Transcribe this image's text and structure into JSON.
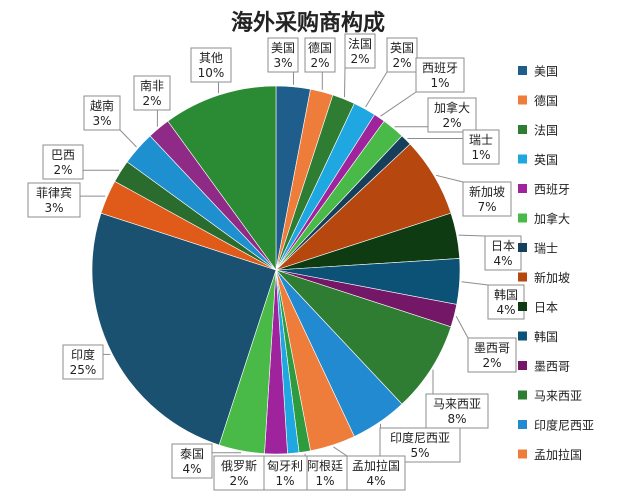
{
  "chart_data": {
    "type": "pie",
    "title": "海外采购商构成",
    "legend_position": "right",
    "start_angle_deg": -90,
    "direction": "clockwise",
    "slices": [
      {
        "name": "美国",
        "value": 3,
        "label": "3%",
        "color": "#1f5e8c"
      },
      {
        "name": "德国",
        "value": 2,
        "label": "2%",
        "color": "#ee7d3b"
      },
      {
        "name": "法国",
        "value": 2,
        "label": "2%",
        "color": "#2e7d32"
      },
      {
        "name": "英国",
        "value": 2,
        "label": "2%",
        "color": "#1ea7e1"
      },
      {
        "name": "西班牙",
        "value": 1,
        "label": "1%",
        "color": "#a0239e"
      },
      {
        "name": "加拿大",
        "value": 2,
        "label": "2%",
        "color": "#49b948"
      },
      {
        "name": "瑞士",
        "value": 1,
        "label": "1%",
        "color": "#163f5c"
      },
      {
        "name": "新加坡",
        "value": 7,
        "label": "7%",
        "color": "#b5470f"
      },
      {
        "name": "日本",
        "value": 4,
        "label": "4%",
        "color": "#0f3b13"
      },
      {
        "name": "韩国",
        "value": 4,
        "label": "4%",
        "color": "#0c5277"
      },
      {
        "name": "墨西哥",
        "value": 2,
        "label": "2%",
        "color": "#741767"
      },
      {
        "name": "马来西亚",
        "value": 8,
        "label": "8%",
        "color": "#2e7d32"
      },
      {
        "name": "印度尼西亚",
        "value": 5,
        "label": "5%",
        "color": "#228ad0"
      },
      {
        "name": "孟加拉国",
        "value": 4,
        "label": "4%",
        "color": "#ee7d3b"
      },
      {
        "name": "阿根廷",
        "value": 1,
        "label": "1%",
        "color": "#2f9b3f"
      },
      {
        "name": "匈牙利",
        "value": 1,
        "label": "1%",
        "color": "#1ea7e1"
      },
      {
        "name": "俄罗斯",
        "value": 2,
        "label": "2%",
        "color": "#a0239e"
      },
      {
        "name": "泰国",
        "value": 4,
        "label": "4%",
        "color": "#49b948"
      },
      {
        "name": "印度",
        "value": 25,
        "label": "25%",
        "color": "#1b5170"
      },
      {
        "name": "菲律宾",
        "value": 3,
        "label": "3%",
        "color": "#e05a1a"
      },
      {
        "name": "巴西",
        "value": 2,
        "label": "2%",
        "color": "#2a6b2e"
      },
      {
        "name": "越南",
        "value": 3,
        "label": "3%",
        "color": "#1e8fcf"
      },
      {
        "name": "南非",
        "value": 2,
        "label": "2%",
        "color": "#8f2b87"
      },
      {
        "name": "其他",
        "value": 10,
        "label": "10%",
        "color": "#2b8a34"
      }
    ],
    "legend_entries": [
      "美国",
      "德国",
      "法国",
      "英国",
      "西班牙",
      "加拿大",
      "瑞士",
      "新加坡",
      "日本",
      "韩国",
      "墨西哥",
      "马来西亚",
      "印度尼西亚",
      "孟加拉国"
    ]
  }
}
